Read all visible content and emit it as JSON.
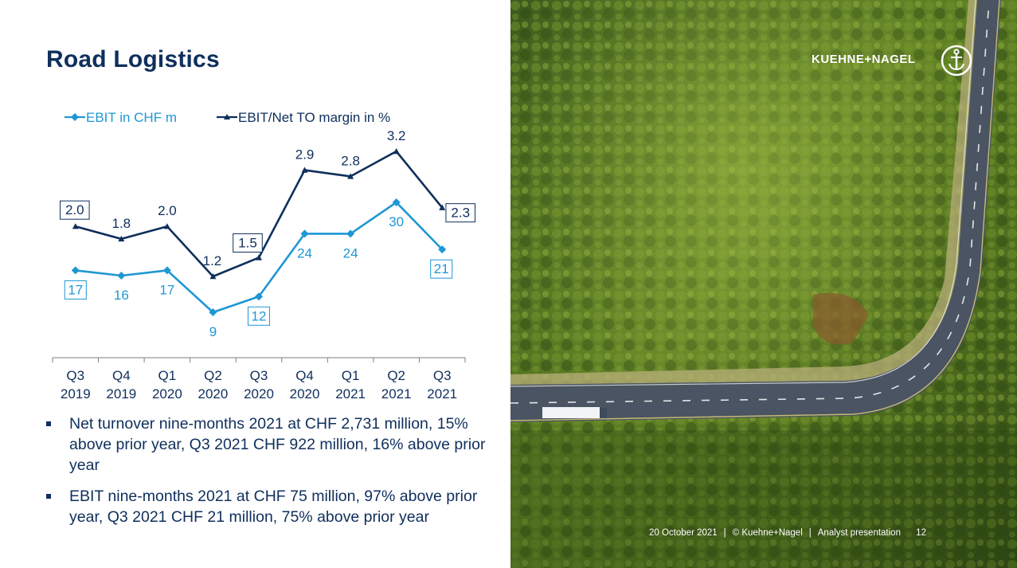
{
  "slide": {
    "title": "Road Logistics",
    "bullets": [
      "Net turnover nine-months 2021 at CHF 2,731 million, 15% above prior year, Q3 2021 CHF 922  million, 16% above prior year",
      "EBIT nine-months 2021 at CHF 75 million, 97% above prior year, Q3 2021 CHF 21 million, 75% above prior year"
    ]
  },
  "brand": {
    "name": "KUEHNE+NAGEL",
    "logo_icon": "anchor-icon"
  },
  "footer": {
    "date": "20 October 2021",
    "copyright": "© Kuehne+Nagel",
    "document": "Analyst presentation",
    "page": "12"
  },
  "colors": {
    "ebit": "#1f97d4",
    "margin": "#0f2f5c",
    "title": "#0f2f5c"
  },
  "chart_data": {
    "type": "line",
    "categories": [
      [
        "Q3",
        "2019"
      ],
      [
        "Q4",
        "2019"
      ],
      [
        "Q1",
        "2020"
      ],
      [
        "Q2",
        "2020"
      ],
      [
        "Q3",
        "2020"
      ],
      [
        "Q4",
        "2020"
      ],
      [
        "Q1",
        "2021"
      ],
      [
        "Q2",
        "2021"
      ],
      [
        "Q3",
        "2021"
      ]
    ],
    "series": [
      {
        "name": "EBIT in CHF m",
        "marker": "diamond",
        "values": [
          17,
          16,
          17,
          9,
          12,
          24,
          24,
          30,
          21
        ],
        "labels": [
          "17",
          "16",
          "17",
          "9",
          "12",
          "24",
          "24",
          "30",
          "21"
        ],
        "boxed": [
          0,
          4,
          8
        ]
      },
      {
        "name": "EBIT/Net TO margin in %",
        "marker": "triangle",
        "values": [
          2.0,
          1.8,
          2.0,
          1.2,
          1.5,
          2.9,
          2.8,
          3.2,
          2.3
        ],
        "labels": [
          "2.0",
          "1.8",
          "2.0",
          "1.2",
          "1.5",
          "2.9",
          "2.8",
          "3.2",
          "2.3"
        ],
        "boxed": [
          0,
          4,
          8
        ]
      }
    ],
    "legend": "top-left",
    "grid": false
  }
}
